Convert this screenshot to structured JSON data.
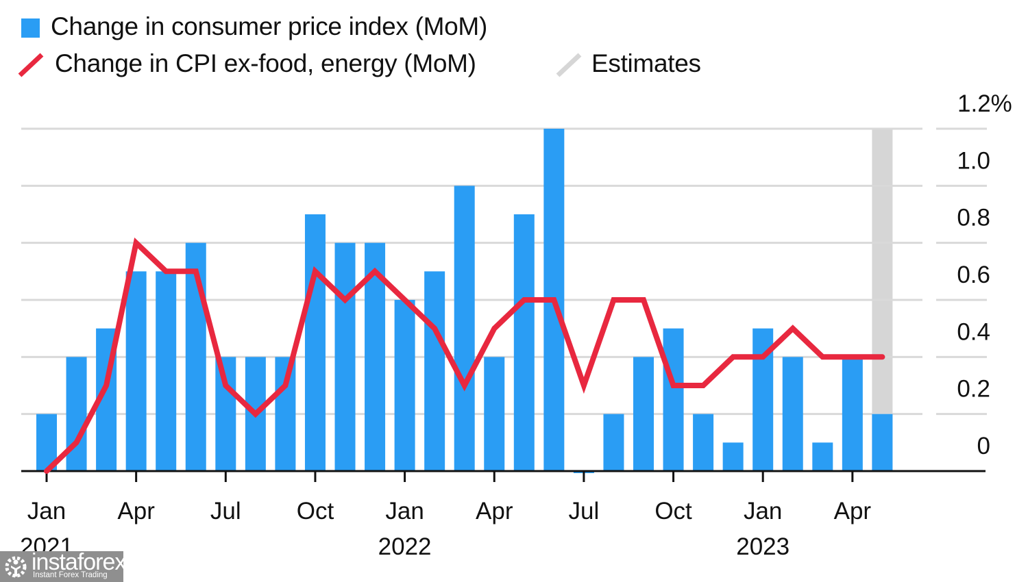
{
  "legend": {
    "items": [
      {
        "label": "Change in consumer price index (MoM)",
        "marker": "square",
        "color": "#2a9df4"
      },
      {
        "label": "Change in CPI ex-food, energy (MoM)",
        "marker": "slash",
        "color": "#e8283f"
      },
      {
        "label": "Estimates",
        "marker": "slash",
        "color": "#d6d6d6"
      }
    ]
  },
  "watermark": {
    "name": "instaforex",
    "tagline": "Instant Forex Trading",
    "icon": "gear-person-logo-icon"
  },
  "chart_data": {
    "type": "bar",
    "title": "",
    "xlabel": "",
    "ylabel": "",
    "ylim": [
      0,
      1.2
    ],
    "y_ticks": [
      0,
      0.2,
      0.4,
      0.6,
      0.8,
      1.0,
      1.2
    ],
    "y_tick_labels": [
      "0",
      "0.2",
      "0.4",
      "0.6",
      "0.8",
      "1.0",
      "1.2%"
    ],
    "y_axis_position": "right",
    "grid": true,
    "legend_position": "top-left",
    "categories": [
      "2021-01",
      "2021-02",
      "2021-03",
      "2021-04",
      "2021-05",
      "2021-06",
      "2021-07",
      "2021-08",
      "2021-09",
      "2021-10",
      "2021-11",
      "2021-12",
      "2022-01",
      "2022-02",
      "2022-03",
      "2022-04",
      "2022-05",
      "2022-06",
      "2022-07",
      "2022-08",
      "2022-09",
      "2022-10",
      "2022-11",
      "2022-12",
      "2023-01",
      "2023-02",
      "2023-03",
      "2023-04",
      "2023-05"
    ],
    "x_ticks": [
      {
        "index": 0,
        "label": "Jan",
        "year": "2021"
      },
      {
        "index": 3,
        "label": "Apr",
        "year": ""
      },
      {
        "index": 6,
        "label": "Jul",
        "year": ""
      },
      {
        "index": 9,
        "label": "Oct",
        "year": ""
      },
      {
        "index": 12,
        "label": "Jan",
        "year": "2022"
      },
      {
        "index": 15,
        "label": "Apr",
        "year": ""
      },
      {
        "index": 18,
        "label": "Jul",
        "year": ""
      },
      {
        "index": 21,
        "label": "Oct",
        "year": ""
      },
      {
        "index": 24,
        "label": "Jan",
        "year": "2023"
      },
      {
        "index": 27,
        "label": "Apr",
        "year": ""
      }
    ],
    "series": [
      {
        "name": "Change in consumer price index (MoM)",
        "type": "bar",
        "color": "#2a9df4",
        "values": [
          0.2,
          0.4,
          0.5,
          0.7,
          0.7,
          0.8,
          0.4,
          0.4,
          0.4,
          0.9,
          0.8,
          0.8,
          0.6,
          0.7,
          1.0,
          0.4,
          0.9,
          1.2,
          0.0,
          0.2,
          0.4,
          0.5,
          0.2,
          0.1,
          0.5,
          0.4,
          0.1,
          0.4,
          0.2
        ]
      },
      {
        "name": "Change in CPI ex-food, energy (MoM)",
        "type": "line",
        "color": "#e8283f",
        "values": [
          0.0,
          0.1,
          0.3,
          0.8,
          0.7,
          0.7,
          0.3,
          0.2,
          0.3,
          0.7,
          0.6,
          0.7,
          0.6,
          0.5,
          0.3,
          0.5,
          0.6,
          0.6,
          0.3,
          0.6,
          0.6,
          0.3,
          0.3,
          0.4,
          0.4,
          0.5,
          0.4,
          0.4,
          0.4
        ]
      }
    ],
    "estimates": {
      "label": "Estimates",
      "color": "#d6d6d6",
      "categories": [
        "2023-05"
      ]
    }
  }
}
